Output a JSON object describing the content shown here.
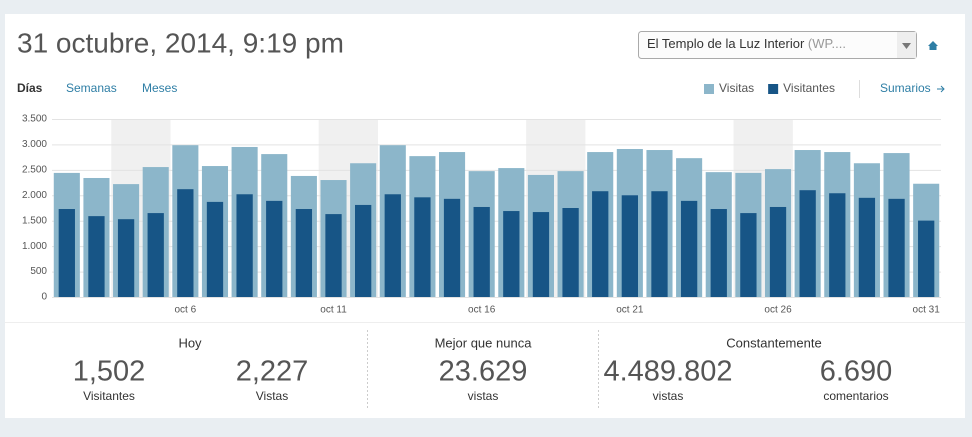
{
  "header": {
    "title": "31 octubre, 2014, 9:19 pm",
    "site_name": "El Templo de la Luz Interior",
    "site_suffix": "(WP...."
  },
  "tabs": [
    "Días",
    "Semanas",
    "Meses"
  ],
  "summary_link": "Sumarios",
  "chart_data": {
    "type": "bar",
    "categories": [
      null,
      null,
      null,
      null,
      "oct 6",
      null,
      null,
      null,
      null,
      "oct 11",
      null,
      null,
      null,
      null,
      "oct 16",
      null,
      null,
      null,
      null,
      "oct 21",
      null,
      null,
      null,
      null,
      "oct 26",
      null,
      null,
      null,
      null,
      "oct 31"
    ],
    "series": [
      {
        "name": "Visitas",
        "color": "#8cb6ca",
        "values": [
          2440,
          2340,
          2220,
          2555,
          2985,
          2575,
          2950,
          2810,
          2380,
          2300,
          2630,
          2985,
          2770,
          2850,
          2475,
          2535,
          2400,
          2475,
          2850,
          2910,
          2890,
          2730,
          2455,
          2440,
          2515,
          2890,
          2850,
          2630,
          2830,
          2227
        ]
      },
      {
        "name": "Visitantes",
        "color": "#175586",
        "values": [
          1730,
          1590,
          1530,
          1650,
          2120,
          1870,
          2020,
          1890,
          1730,
          1630,
          1810,
          2020,
          1960,
          1930,
          1770,
          1690,
          1670,
          1750,
          2080,
          2000,
          2080,
          1890,
          1730,
          1650,
          1770,
          2100,
          2040,
          1950,
          1930,
          1502
        ]
      }
    ],
    "ylim": [
      0,
      3500
    ],
    "yticks": [
      0,
      500,
      {
        "value": 1000,
        "label": "1.000"
      },
      {
        "value": 1500,
        "label": "1.500"
      },
      {
        "value": 2000,
        "label": "2.000"
      },
      {
        "value": 2500,
        "label": "2.500"
      },
      {
        "value": 3000,
        "label": "3.000"
      },
      {
        "value": 3500,
        "label": "3.500"
      }
    ],
    "grid": true
  },
  "summary": [
    {
      "title": "Hoy",
      "stats": [
        {
          "value": "1,502",
          "label": "Visitantes"
        },
        {
          "value": "2,227",
          "label": "Vistas"
        }
      ]
    },
    {
      "title": "Mejor que nunca",
      "stats": [
        {
          "value": "23.629",
          "label": "vistas"
        }
      ]
    },
    {
      "title": "Constantemente",
      "stats": [
        {
          "value": "4.489.802",
          "label": "vistas"
        },
        {
          "value": "6.690",
          "label": "comentarios"
        }
      ]
    }
  ]
}
